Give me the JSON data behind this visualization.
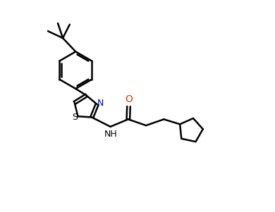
{
  "background": "#ffffff",
  "line_color": "#000000",
  "line_width": 1.8,
  "n_color": "#0000cc",
  "s_color": "#000000",
  "o_color": "#cc4400",
  "font_size": 9,
  "fig_w": 3.9,
  "fig_h": 3.01,
  "dpi": 100,
  "xlim": [
    0.0,
    10.0
  ],
  "ylim": [
    0.5,
    9.0
  ]
}
